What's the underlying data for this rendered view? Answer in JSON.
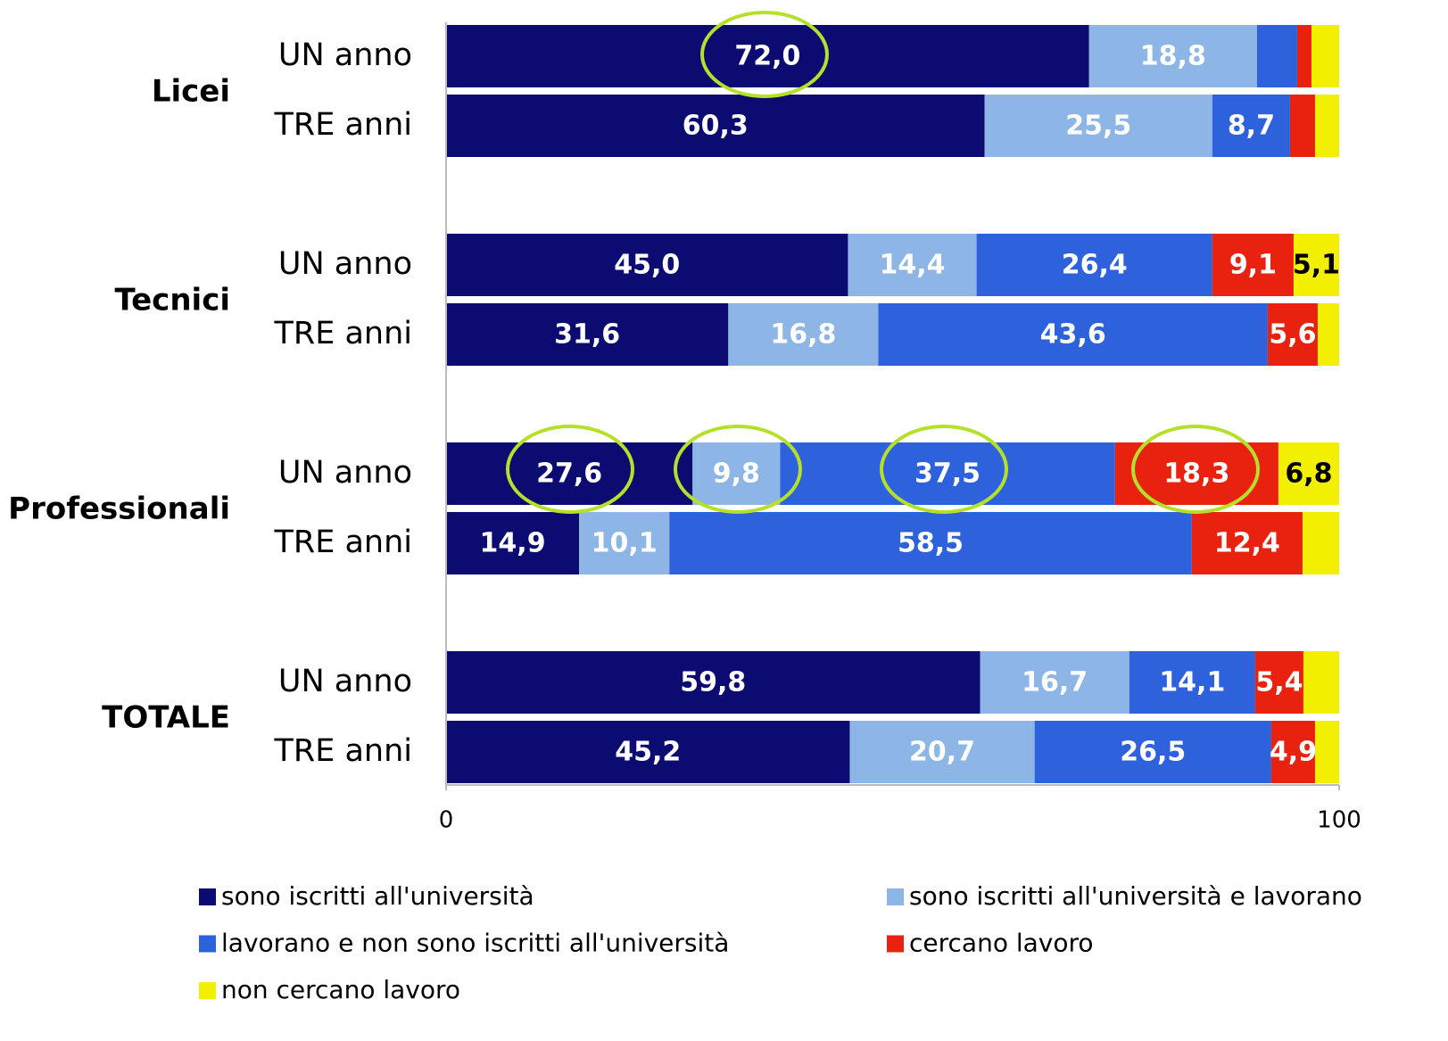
{
  "chart_data": {
    "type": "stacked_barh",
    "groups": [
      "Licei",
      "Tecnici",
      "Professionali",
      "TOTALE"
    ],
    "categories": [
      "UN anno",
      "TRE anni",
      "UN anno",
      "TRE anni",
      "UN anno",
      "TRE anni",
      "UN anno",
      "TRE anni"
    ],
    "series": [
      {
        "name": "sono iscritti all'università",
        "color": "#0b0b72",
        "values": [
          72.0,
          60.3,
          45.0,
          31.6,
          27.6,
          14.9,
          59.8,
          45.2
        ],
        "value_labels": [
          "72,0",
          "60,3",
          "45,0",
          "31,6",
          "27,6",
          "14,9",
          "59,8",
          "45,2"
        ]
      },
      {
        "name": "sono iscritti all'università e lavorano",
        "color": "#8db6e6",
        "values": [
          18.8,
          25.5,
          14.4,
          16.8,
          9.8,
          10.1,
          16.7,
          20.7
        ],
        "value_labels": [
          "18,8",
          "25,5",
          "14,4",
          "16,8",
          "9,8",
          "10,1",
          "16,7",
          "20,7"
        ]
      },
      {
        "name": "lavorano e non sono iscritti all'università",
        "color": "#2d62dc",
        "values": [
          4.5,
          8.7,
          26.4,
          43.6,
          37.5,
          58.5,
          14.1,
          26.5
        ],
        "value_labels": [
          null,
          "8,7",
          "26,4",
          "43,6",
          "37,5",
          "58,5",
          "14,1",
          "26,5"
        ]
      },
      {
        "name": "cercano lavoro",
        "color": "#e8220e",
        "values": [
          1.6,
          2.8,
          9.1,
          5.6,
          18.3,
          12.4,
          5.4,
          4.9
        ],
        "value_labels": [
          null,
          null,
          "9,1",
          "5,6",
          "18,3",
          "12,4",
          "5,4",
          "4,9"
        ]
      },
      {
        "name": "non cercano lavoro",
        "color": "#f2f000",
        "values": [
          3.1,
          2.7,
          5.1,
          2.4,
          6.8,
          4.1,
          4.0,
          2.7
        ],
        "value_labels": [
          null,
          null,
          "5,1",
          null,
          "6,8",
          null,
          null,
          null
        ]
      }
    ],
    "xlim": [
      0,
      100
    ],
    "xticks": [
      0,
      100
    ],
    "legend": "bottom"
  }
}
